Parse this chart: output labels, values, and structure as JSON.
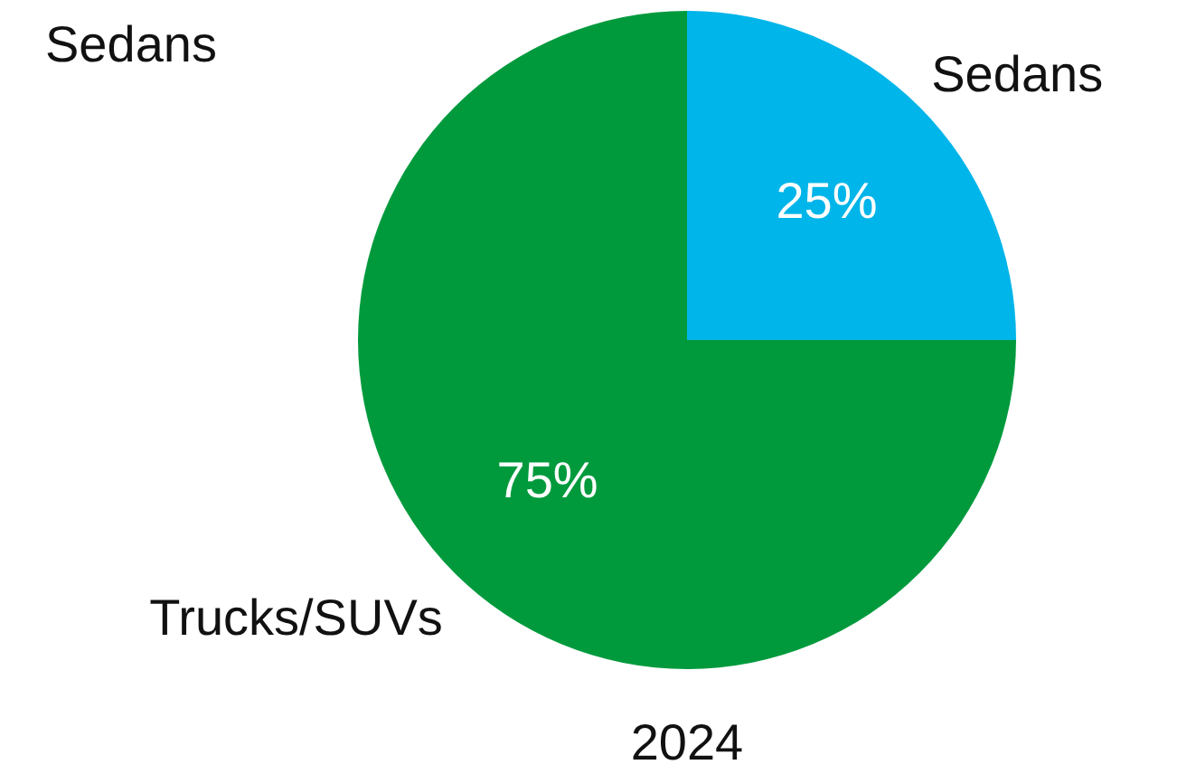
{
  "chart_data": {
    "type": "pie",
    "title": "2024",
    "categories": [
      "Sedans",
      "Trucks/SUVs"
    ],
    "values": [
      25,
      75
    ],
    "colors": [
      "#00b5e9",
      "#009a3d"
    ],
    "value_labels": [
      "25%",
      "75%"
    ],
    "legend": false,
    "annotations": [
      "Sedans"
    ]
  }
}
